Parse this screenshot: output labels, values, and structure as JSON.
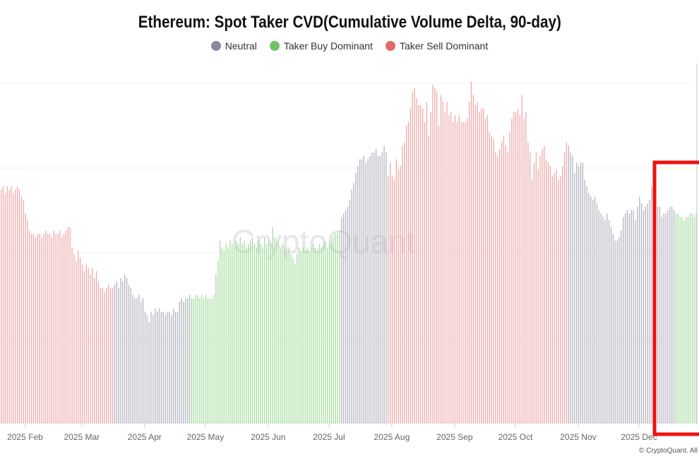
{
  "chart_data": {
    "type": "bar",
    "title": "Ethereum: Spot Taker CVD(Cumulative Volume Delta, 90-day)",
    "legend": {
      "placement": "top-center",
      "entries": [
        {
          "key": "neutral",
          "label": "Neutral",
          "color": "#8a8a9c"
        },
        {
          "key": "buy",
          "label": "Taker Buy Dominant",
          "color": "#72c16a"
        },
        {
          "key": "sell",
          "label": "Taker Sell Dominant",
          "color": "#e06a6a"
        }
      ]
    },
    "bar_colors": {
      "neutral": "#b4b4c0",
      "buy": "#a6dba0",
      "sell": "#eeaaaa"
    },
    "x_ticks": [
      {
        "date": "2025-02-01",
        "label": "2025 Feb"
      },
      {
        "date": "2025-03-01",
        "label": "2025 Mar"
      },
      {
        "date": "2025-04-01",
        "label": "2025 Apr"
      },
      {
        "date": "2025-05-01",
        "label": "2025 May"
      },
      {
        "date": "2025-06-01",
        "label": "2025 Jun"
      },
      {
        "date": "2025-07-01",
        "label": "2025 Jul"
      },
      {
        "date": "2025-08-01",
        "label": "2025 Aug"
      },
      {
        "date": "2025-09-01",
        "label": "2025 Sep"
      },
      {
        "date": "2025-10-01",
        "label": "2025 Oct"
      },
      {
        "date": "2025-11-01",
        "label": "2025 Nov"
      },
      {
        "date": "2025-12-01",
        "label": "2025 Dec"
      }
    ],
    "grid": true,
    "y_axis_labels_visible": false,
    "value_scale": "relative (0-100), no y-axis labels printed",
    "segments": [
      {
        "from": "2025-01-20",
        "category": "sell",
        "values": [
          69,
          70,
          68,
          70,
          69,
          70,
          68,
          69,
          70,
          69,
          67,
          66,
          62,
          60,
          57,
          56,
          56,
          55,
          56,
          56,
          55,
          56,
          57,
          56,
          56,
          55,
          57,
          56,
          56,
          57,
          55,
          56,
          57,
          58,
          58,
          52,
          50,
          48,
          51,
          49,
          47,
          45,
          47,
          46,
          44,
          46,
          43,
          45,
          42,
          40,
          40,
          39,
          40,
          41,
          40,
          40
        ]
      },
      {
        "from": "2025-03-17",
        "category": "neutral",
        "values": [
          41,
          42,
          40,
          43,
          42,
          44,
          43,
          41,
          40,
          38,
          37,
          37,
          38,
          36,
          37,
          33,
          32,
          30,
          33,
          32,
          34,
          33,
          34,
          33,
          33,
          32,
          33,
          33,
          32,
          34,
          33,
          33,
          36,
          37,
          36,
          37,
          37,
          38
        ]
      },
      {
        "from": "2025-04-24",
        "category": "buy",
        "values": [
          37,
          37,
          38,
          38,
          37,
          38,
          37,
          38,
          37,
          37,
          37,
          38,
          44,
          48,
          54,
          52,
          51,
          53,
          52,
          54,
          53,
          52,
          54,
          53,
          55,
          53,
          54,
          52,
          53,
          54,
          55,
          53,
          52,
          54,
          53,
          52,
          55,
          53,
          54,
          53,
          58,
          55,
          54,
          53,
          52,
          53,
          52,
          51,
          52,
          50,
          49,
          47,
          50,
          52,
          51,
          52,
          51,
          52,
          51,
          52,
          53,
          52,
          51,
          53,
          52,
          53,
          54,
          52,
          53,
          54,
          55,
          56,
          56,
          57
        ]
      },
      {
        "from": "2025-07-07",
        "category": "neutral",
        "values": [
          61,
          62,
          63,
          64,
          66,
          69,
          71,
          74,
          76,
          78,
          78,
          79,
          77,
          78,
          79,
          80,
          80,
          81,
          79,
          79,
          80,
          82,
          80
        ]
      },
      {
        "from": "2025-07-30",
        "category": "sell",
        "values": [
          73,
          77,
          73,
          72,
          78,
          75,
          76,
          82,
          83,
          88,
          89,
          93,
          98,
          99,
          96,
          94,
          94,
          93,
          89,
          95,
          85,
          92,
          100,
          99,
          98,
          88,
          97,
          95,
          92,
          95,
          91,
          92,
          89,
          91,
          89,
          91,
          89,
          89,
          89,
          90,
          95,
          101,
          97,
          94,
          95,
          92,
          93,
          93,
          90,
          91,
          86,
          85,
          84,
          80,
          79,
          81,
          83,
          85,
          82,
          80,
          86,
          90,
          92,
          92,
          93,
          91,
          97,
          90,
          92,
          83,
          80,
          72,
          77,
          80,
          75,
          79,
          81,
          82,
          78,
          77,
          76,
          73,
          74,
          75,
          72,
          73,
          76,
          80,
          83
        ]
      },
      {
        "from": "2025-10-27",
        "category": "neutral",
        "values": [
          82,
          80,
          79,
          74,
          77,
          76,
          77,
          77,
          72,
          70,
          68,
          67,
          66,
          67,
          65,
          63,
          62,
          61,
          60,
          62,
          60,
          58,
          56,
          54,
          54,
          55,
          57,
          61,
          62,
          63,
          62,
          63,
          63,
          60,
          64,
          67,
          65,
          63,
          64,
          65,
          66,
          70,
          67,
          66,
          64,
          64,
          61,
          62,
          62,
          63,
          64,
          64,
          63
        ]
      },
      {
        "from": "2025-12-19",
        "category": "buy",
        "values": [
          62,
          62,
          61,
          61,
          60,
          61,
          61,
          62,
          62,
          61,
          62
        ]
      }
    ],
    "watermark": "CryptoQuant",
    "highlight_box_color": "#ee1111"
  },
  "footer": {
    "copyright": "© CryptoQuant. All"
  }
}
